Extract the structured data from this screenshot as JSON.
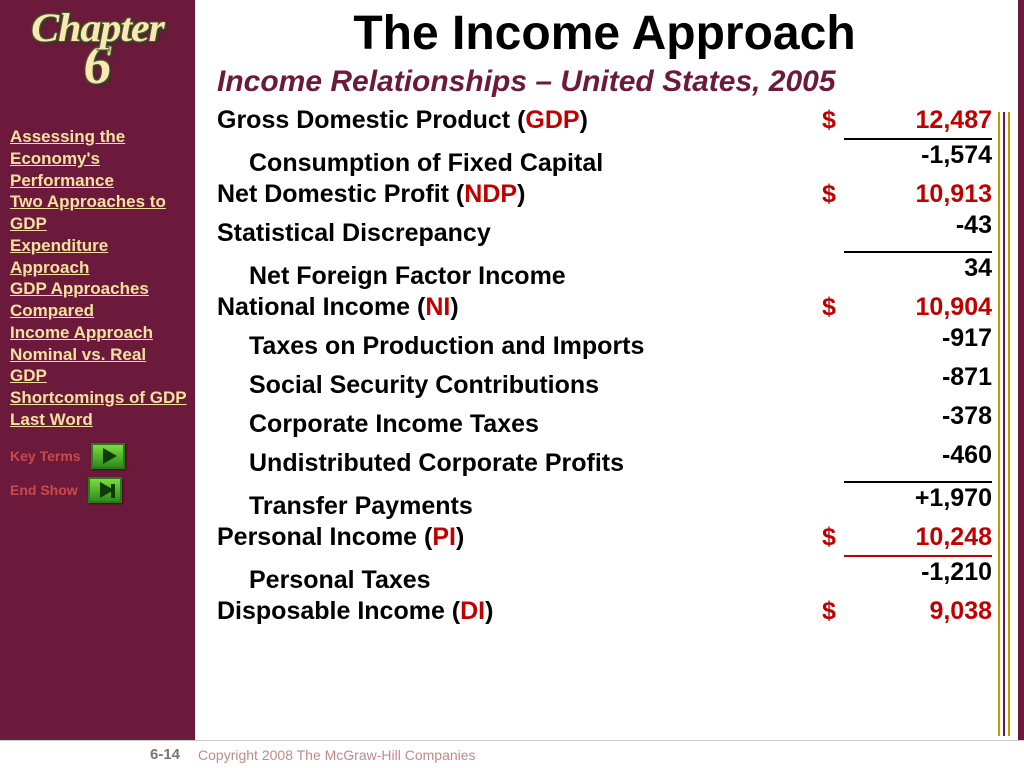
{
  "chapter": {
    "word": "Chapter",
    "number": "6"
  },
  "nav": {
    "links": [
      "Assessing the Economy's Performance",
      "Two Approaches to GDP",
      "Expenditure Approach",
      "GDP Approaches Compared",
      "Income Approach",
      "Nominal vs. Real GDP",
      "Shortcomings of GDP",
      "Last Word"
    ],
    "key_terms": "Key Terms",
    "end_show": "End Show"
  },
  "main": {
    "title": "The Income Approach",
    "subtitle": "Income Relationships – United States, 2005",
    "rows": [
      {
        "label": "Gross Domestic Product (",
        "abbr": "GDP",
        "close": ")",
        "dollar": "$",
        "value": "12,487",
        "red": true
      },
      {
        "label": "Consumption of Fixed Capital",
        "indent": true,
        "value": "-1,574",
        "rule": true
      },
      {
        "label": "Net Domestic Profit (",
        "abbr": "NDP",
        "close": ")",
        "dollar": "$",
        "value": "10,913",
        "red": true
      },
      {
        "label": "Statistical Discrepancy",
        "value": "-43"
      },
      {
        "label": "Net Foreign Factor Income",
        "indent": true,
        "value": "34",
        "rule": true
      },
      {
        "label": "National Income (",
        "abbr": "NI",
        "close": ")",
        "dollar": "$",
        "value": "10,904",
        "red": true
      },
      {
        "label": "Taxes on Production and Imports",
        "indent": true,
        "value": "-917"
      },
      {
        "label": "Social Security Contributions",
        "indent": true,
        "value": "-871"
      },
      {
        "label": "Corporate Income Taxes",
        "indent": true,
        "value": "-378"
      },
      {
        "label": "Undistributed Corporate Profits",
        "indent": true,
        "value": "-460"
      },
      {
        "label": "Transfer Payments",
        "indent": true,
        "value": "+1,970",
        "rule": true
      },
      {
        "label": "Personal Income (",
        "abbr": "PI",
        "close": ")",
        "dollar": "$",
        "value": "10,248",
        "red": true
      },
      {
        "label": "Personal Taxes",
        "indent": true,
        "value": "-1,210",
        "rule": true,
        "rule_red": true
      },
      {
        "label": "Disposable Income (",
        "abbr": "DI",
        "close": ")",
        "dollar": "$",
        "value": "9,038",
        "red": true
      }
    ]
  },
  "footer": {
    "page": "6-14",
    "copyright": "Copyright 2008 The McGraw-Hill Companies"
  },
  "colors": {
    "sidebar_bg": "#6c1a3c",
    "nav_text": "#f4e1a0",
    "accent_red": "#c00000",
    "key_red": "#c94a4a"
  }
}
